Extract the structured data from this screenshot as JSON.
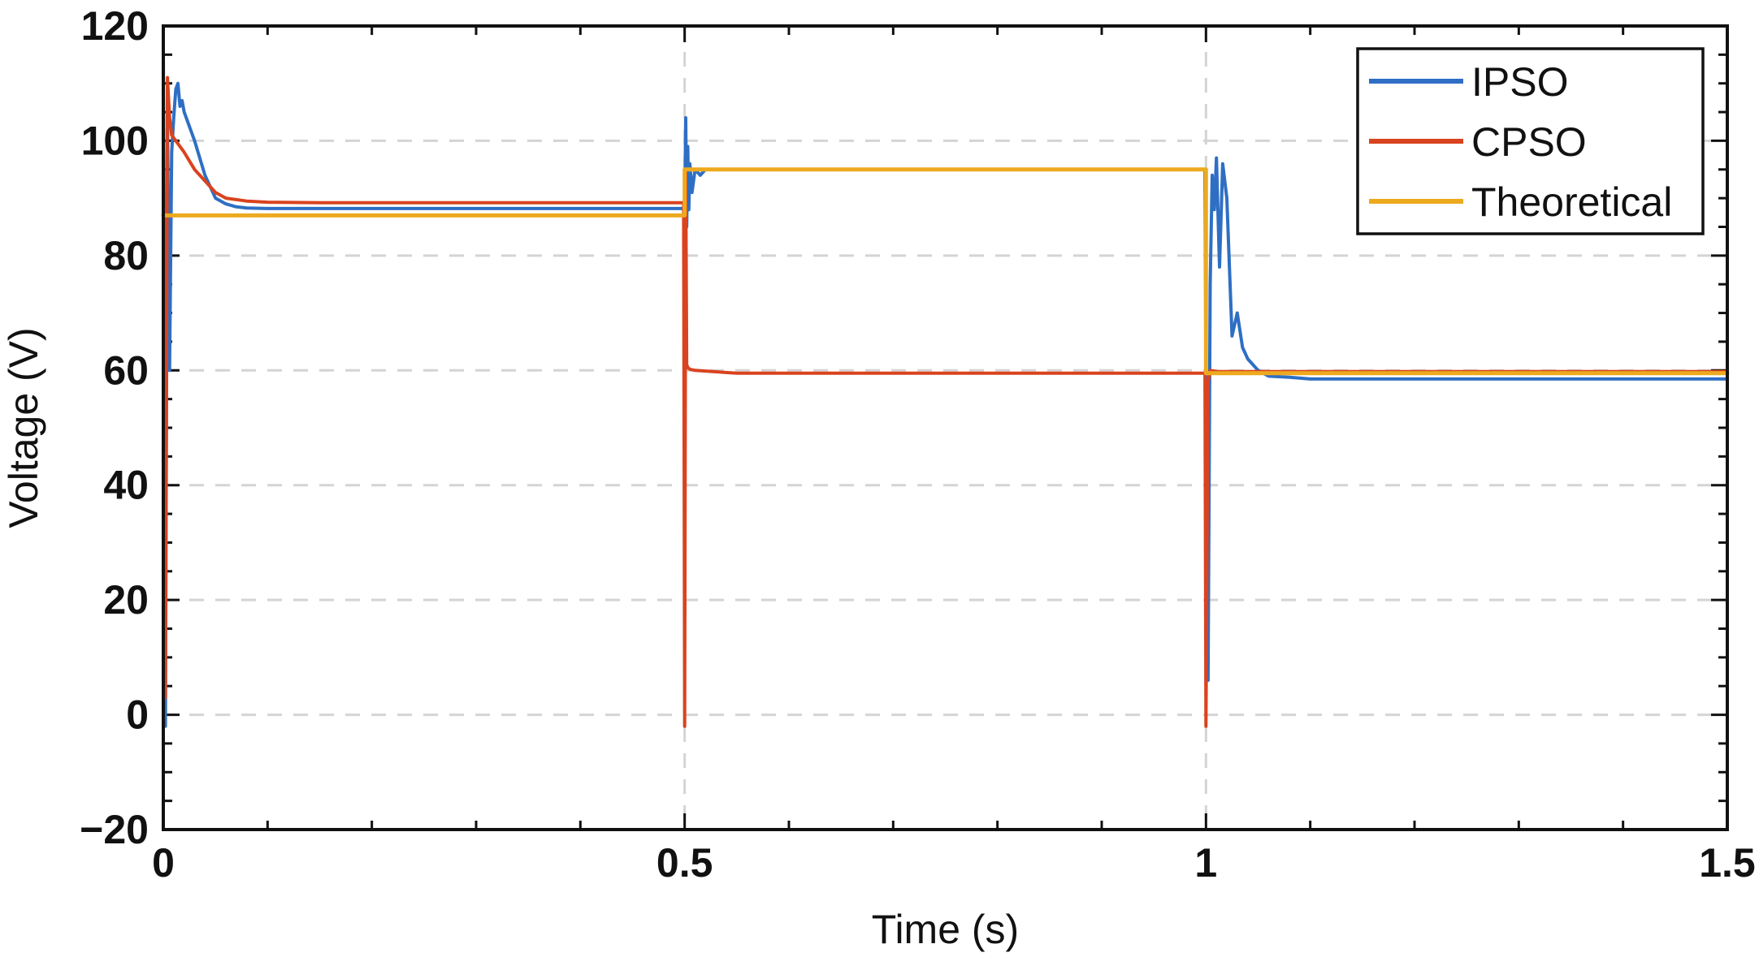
{
  "chart_data": {
    "type": "line",
    "title": "",
    "xlabel": "Time (s)",
    "ylabel": "Voltage (V)",
    "xlim": [
      0,
      1.5
    ],
    "ylim": [
      -20,
      120
    ],
    "x_ticks": [
      0,
      0.5,
      1,
      1.5
    ],
    "x_tick_labels": [
      "0",
      "0.5",
      "1",
      "1.5"
    ],
    "y_ticks": [
      -20,
      0,
      20,
      40,
      60,
      80,
      100,
      120
    ],
    "y_tick_labels": [
      "−20",
      "0",
      "20",
      "40",
      "60",
      "80",
      "100",
      "120"
    ],
    "grid": "dashed",
    "legend_position": "top-right",
    "series": [
      {
        "name": "IPSO",
        "color": "#2E6FC4",
        "x": [
          0,
          0.002,
          0.004,
          0.006,
          0.008,
          0.01,
          0.012,
          0.014,
          0.016,
          0.018,
          0.02,
          0.03,
          0.04,
          0.05,
          0.06,
          0.07,
          0.08,
          0.1,
          0.2,
          0.3,
          0.4,
          0.499,
          0.5,
          0.501,
          0.502,
          0.503,
          0.504,
          0.505,
          0.507,
          0.51,
          0.515,
          0.52,
          0.53,
          0.6,
          0.8,
          0.999,
          1.0,
          1.002,
          1.004,
          1.006,
          1.008,
          1.01,
          1.013,
          1.016,
          1.02,
          1.025,
          1.03,
          1.035,
          1.04,
          1.05,
          1.06,
          1.08,
          1.1,
          1.2,
          1.3,
          1.5
        ],
        "values": [
          0,
          -2,
          105,
          60,
          98,
          104,
          109,
          110,
          106,
          107,
          105,
          100,
          94,
          90,
          89,
          88.5,
          88.3,
          88.2,
          88.2,
          88.2,
          88.2,
          88.2,
          87,
          104,
          85,
          99,
          88,
          96,
          91,
          95,
          94,
          95,
          95,
          95,
          95,
          95,
          59,
          6,
          75,
          94,
          88,
          97,
          78,
          96,
          90,
          66,
          70,
          64,
          62,
          60,
          59,
          58.8,
          58.5,
          58.5,
          58.5,
          58.5
        ]
      },
      {
        "name": "CPSO",
        "color": "#D9431F",
        "x": [
          0,
          0.002,
          0.004,
          0.006,
          0.008,
          0.012,
          0.02,
          0.03,
          0.04,
          0.05,
          0.06,
          0.08,
          0.1,
          0.15,
          0.2,
          0.3,
          0.4,
          0.499,
          0.5,
          0.501,
          0.502,
          0.503,
          0.505,
          0.51,
          0.55,
          0.7,
          0.9,
          0.999,
          1.0,
          1.002,
          1.004,
          1.01,
          1.1,
          1.3,
          1.5
        ],
        "values": [
          116,
          3,
          111,
          104,
          101,
          100,
          98,
          95,
          93,
          91,
          90,
          89.5,
          89.3,
          89.2,
          89.2,
          89.2,
          89.2,
          89.2,
          -2,
          95,
          61,
          60.5,
          60.2,
          60,
          59.5,
          59.5,
          59.5,
          59.5,
          -2,
          58,
          60,
          59.8,
          59.8,
          59.8,
          59.8
        ]
      },
      {
        "name": "Theoretical",
        "color": "#EDAA1F",
        "x": [
          0,
          0.5,
          0.5,
          1.0,
          1.0,
          1.5
        ],
        "values": [
          87,
          87,
          95,
          95,
          59.5,
          59.5
        ]
      }
    ]
  }
}
